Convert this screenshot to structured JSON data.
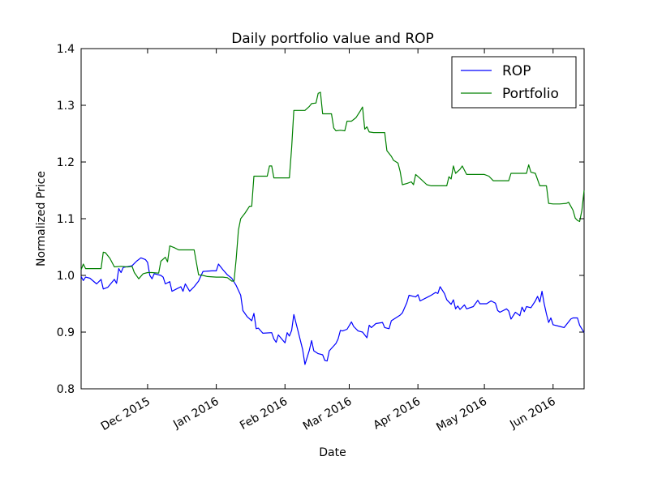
{
  "chart_data": {
    "type": "line",
    "title": "Daily portfolio value and ROP",
    "xlabel": "Date",
    "ylabel": "Normalized Price",
    "xlim": [
      "2015-11-01",
      "2016-06-15"
    ],
    "ylim": [
      0.8,
      1.4
    ],
    "y_ticks": [
      "0.8",
      "0.9",
      "1.0",
      "1.1",
      "1.2",
      "1.3",
      "1.4"
    ],
    "x_ticks": [
      {
        "date": "2015-12-01",
        "label": "Dec 2015"
      },
      {
        "date": "2016-01-01",
        "label": "Jan 2016"
      },
      {
        "date": "2016-02-01",
        "label": "Feb 2016"
      },
      {
        "date": "2016-03-01",
        "label": "Mar 2016"
      },
      {
        "date": "2016-04-01",
        "label": "Apr 2016"
      },
      {
        "date": "2016-05-01",
        "label": "May 2016"
      },
      {
        "date": "2016-06-01",
        "label": "Jun 2016"
      }
    ],
    "grid": false,
    "legend_position": "top-right",
    "series": [
      {
        "name": "ROP",
        "color": "#0000ff",
        "points": [
          [
            "2015-11-01",
            0.998
          ],
          [
            "2015-11-02",
            0.991
          ],
          [
            "2015-11-03",
            0.997
          ],
          [
            "2015-11-05",
            0.995
          ],
          [
            "2015-11-08",
            0.985
          ],
          [
            "2015-11-10",
            0.993
          ],
          [
            "2015-11-11",
            0.976
          ],
          [
            "2015-11-13",
            0.979
          ],
          [
            "2015-11-16",
            0.993
          ],
          [
            "2015-11-17",
            0.986
          ],
          [
            "2015-11-18",
            1.012
          ],
          [
            "2015-11-19",
            1.005
          ],
          [
            "2015-11-20",
            1.014
          ],
          [
            "2015-11-24",
            1.017
          ],
          [
            "2015-11-26",
            1.025
          ],
          [
            "2015-11-28",
            1.031
          ],
          [
            "2015-11-30",
            1.028
          ],
          [
            "2015-12-01",
            1.023
          ],
          [
            "2015-12-02",
            1.0
          ],
          [
            "2015-12-03",
            0.994
          ],
          [
            "2015-12-04",
            1.003
          ],
          [
            "2015-12-07",
            1.0
          ],
          [
            "2015-12-08",
            0.997
          ],
          [
            "2015-12-09",
            0.985
          ],
          [
            "2015-12-11",
            0.989
          ],
          [
            "2015-12-12",
            0.972
          ],
          [
            "2015-12-14",
            0.976
          ],
          [
            "2015-12-16",
            0.98
          ],
          [
            "2015-12-17",
            0.972
          ],
          [
            "2015-12-18",
            0.985
          ],
          [
            "2015-12-20",
            0.972
          ],
          [
            "2015-12-22",
            0.98
          ],
          [
            "2015-12-24",
            0.99
          ],
          [
            "2015-12-26",
            1.007
          ],
          [
            "2015-12-30",
            1.008
          ],
          [
            "2016-01-01",
            1.008
          ],
          [
            "2016-01-02",
            1.02
          ],
          [
            "2016-01-04",
            1.01
          ],
          [
            "2016-01-06",
            1.001
          ],
          [
            "2016-01-08",
            0.995
          ],
          [
            "2016-01-10",
            0.982
          ],
          [
            "2016-01-12",
            0.965
          ],
          [
            "2016-01-13",
            0.938
          ],
          [
            "2016-01-15",
            0.927
          ],
          [
            "2016-01-17",
            0.92
          ],
          [
            "2016-01-18",
            0.933
          ],
          [
            "2016-01-19",
            0.906
          ],
          [
            "2016-01-20",
            0.907
          ],
          [
            "2016-01-22",
            0.898
          ],
          [
            "2016-01-26",
            0.899
          ],
          [
            "2016-01-27",
            0.888
          ],
          [
            "2016-01-28",
            0.882
          ],
          [
            "2016-01-29",
            0.895
          ],
          [
            "2016-02-01",
            0.881
          ],
          [
            "2016-02-02",
            0.899
          ],
          [
            "2016-02-03",
            0.893
          ],
          [
            "2016-02-04",
            0.903
          ],
          [
            "2016-02-05",
            0.931
          ],
          [
            "2016-02-07",
            0.9
          ],
          [
            "2016-02-09",
            0.869
          ],
          [
            "2016-02-10",
            0.843
          ],
          [
            "2016-02-12",
            0.868
          ],
          [
            "2016-02-13",
            0.885
          ],
          [
            "2016-02-14",
            0.867
          ],
          [
            "2016-02-16",
            0.862
          ],
          [
            "2016-02-18",
            0.86
          ],
          [
            "2016-02-19",
            0.85
          ],
          [
            "2016-02-20",
            0.849
          ],
          [
            "2016-02-21",
            0.867
          ],
          [
            "2016-02-24",
            0.88
          ],
          [
            "2016-02-25",
            0.888
          ],
          [
            "2016-02-26",
            0.903
          ],
          [
            "2016-02-27",
            0.902
          ],
          [
            "2016-02-29",
            0.905
          ],
          [
            "2016-03-02",
            0.918
          ],
          [
            "2016-03-03",
            0.91
          ],
          [
            "2016-03-05",
            0.902
          ],
          [
            "2016-03-07",
            0.9
          ],
          [
            "2016-03-09",
            0.89
          ],
          [
            "2016-03-10",
            0.912
          ],
          [
            "2016-03-11",
            0.908
          ],
          [
            "2016-03-13",
            0.915
          ],
          [
            "2016-03-16",
            0.917
          ],
          [
            "2016-03-17",
            0.908
          ],
          [
            "2016-03-19",
            0.906
          ],
          [
            "2016-03-20",
            0.92
          ],
          [
            "2016-03-24",
            0.93
          ],
          [
            "2016-03-25",
            0.934
          ],
          [
            "2016-03-27",
            0.952
          ],
          [
            "2016-03-28",
            0.965
          ],
          [
            "2016-03-31",
            0.962
          ],
          [
            "2016-04-01",
            0.966
          ],
          [
            "2016-04-02",
            0.955
          ],
          [
            "2016-04-05",
            0.961
          ],
          [
            "2016-04-07",
            0.965
          ],
          [
            "2016-04-09",
            0.97
          ],
          [
            "2016-04-10",
            0.968
          ],
          [
            "2016-04-11",
            0.98
          ],
          [
            "2016-04-13",
            0.968
          ],
          [
            "2016-04-14",
            0.957
          ],
          [
            "2016-04-16",
            0.949
          ],
          [
            "2016-04-17",
            0.957
          ],
          [
            "2016-04-18",
            0.941
          ],
          [
            "2016-04-19",
            0.946
          ],
          [
            "2016-04-20",
            0.94
          ],
          [
            "2016-04-22",
            0.948
          ],
          [
            "2016-04-23",
            0.941
          ],
          [
            "2016-04-26",
            0.945
          ],
          [
            "2016-04-28",
            0.956
          ],
          [
            "2016-04-29",
            0.95
          ],
          [
            "2016-05-02",
            0.95
          ],
          [
            "2016-05-04",
            0.955
          ],
          [
            "2016-05-05",
            0.953
          ],
          [
            "2016-05-06",
            0.951
          ],
          [
            "2016-05-07",
            0.938
          ],
          [
            "2016-05-08",
            0.935
          ],
          [
            "2016-05-11",
            0.941
          ],
          [
            "2016-05-12",
            0.937
          ],
          [
            "2016-05-13",
            0.923
          ],
          [
            "2016-05-15",
            0.935
          ],
          [
            "2016-05-17",
            0.929
          ],
          [
            "2016-05-18",
            0.944
          ],
          [
            "2016-05-19",
            0.936
          ],
          [
            "2016-05-20",
            0.945
          ],
          [
            "2016-05-22",
            0.943
          ],
          [
            "2016-05-24",
            0.955
          ],
          [
            "2016-05-25",
            0.963
          ],
          [
            "2016-05-26",
            0.953
          ],
          [
            "2016-05-27",
            0.972
          ],
          [
            "2016-05-28",
            0.95
          ],
          [
            "2016-05-29",
            0.932
          ],
          [
            "2016-05-30",
            0.917
          ],
          [
            "2016-05-31",
            0.925
          ],
          [
            "2016-06-01",
            0.913
          ],
          [
            "2016-06-04",
            0.91
          ],
          [
            "2016-06-06",
            0.908
          ],
          [
            "2016-06-07",
            0.913
          ],
          [
            "2016-06-09",
            0.923
          ],
          [
            "2016-06-10",
            0.925
          ],
          [
            "2016-06-12",
            0.925
          ],
          [
            "2016-06-13",
            0.912
          ],
          [
            "2016-06-15",
            0.899
          ]
        ]
      },
      {
        "name": "Portfolio",
        "color": "#008000",
        "points": [
          [
            "2015-11-01",
            1.01
          ],
          [
            "2015-11-02",
            1.02
          ],
          [
            "2015-11-03",
            1.012
          ],
          [
            "2015-11-06",
            1.012
          ],
          [
            "2015-11-10",
            1.012
          ],
          [
            "2015-11-11",
            1.041
          ],
          [
            "2015-11-12",
            1.04
          ],
          [
            "2015-11-14",
            1.03
          ],
          [
            "2015-11-16",
            1.015
          ],
          [
            "2015-11-19",
            1.016
          ],
          [
            "2015-11-22",
            1.015
          ],
          [
            "2015-11-24",
            1.016
          ],
          [
            "2015-11-25",
            1.005
          ],
          [
            "2015-11-27",
            0.994
          ],
          [
            "2015-11-29",
            1.003
          ],
          [
            "2015-12-01",
            1.005
          ],
          [
            "2015-12-03",
            1.005
          ],
          [
            "2015-12-06",
            1.004
          ],
          [
            "2015-12-07",
            1.025
          ],
          [
            "2015-12-09",
            1.032
          ],
          [
            "2015-12-10",
            1.024
          ],
          [
            "2015-12-11",
            1.052
          ],
          [
            "2015-12-13",
            1.049
          ],
          [
            "2015-12-15",
            1.045
          ],
          [
            "2015-12-18",
            1.045
          ],
          [
            "2015-12-20",
            1.045
          ],
          [
            "2015-12-22",
            1.045
          ],
          [
            "2015-12-24",
            1.001
          ],
          [
            "2015-12-26",
            1.0
          ],
          [
            "2015-12-28",
            0.998
          ],
          [
            "2016-01-01",
            0.997
          ],
          [
            "2016-01-04",
            0.997
          ],
          [
            "2016-01-06",
            0.996
          ],
          [
            "2016-01-08",
            0.99
          ],
          [
            "2016-01-09",
            0.99
          ],
          [
            "2016-01-10",
            1.03
          ],
          [
            "2016-01-11",
            1.08
          ],
          [
            "2016-01-12",
            1.1
          ],
          [
            "2016-01-14",
            1.11
          ],
          [
            "2016-01-16",
            1.122
          ],
          [
            "2016-01-17",
            1.122
          ],
          [
            "2016-01-18",
            1.175
          ],
          [
            "2016-01-20",
            1.175
          ],
          [
            "2016-01-22",
            1.175
          ],
          [
            "2016-01-24",
            1.175
          ],
          [
            "2016-01-25",
            1.193
          ],
          [
            "2016-01-26",
            1.193
          ],
          [
            "2016-01-27",
            1.172
          ],
          [
            "2016-01-29",
            1.172
          ],
          [
            "2016-02-01",
            1.172
          ],
          [
            "2016-02-03",
            1.172
          ],
          [
            "2016-02-04",
            1.225
          ],
          [
            "2016-02-05",
            1.291
          ],
          [
            "2016-02-07",
            1.291
          ],
          [
            "2016-02-10",
            1.291
          ],
          [
            "2016-02-12",
            1.298
          ],
          [
            "2016-02-13",
            1.303
          ],
          [
            "2016-02-15",
            1.304
          ],
          [
            "2016-02-16",
            1.321
          ],
          [
            "2016-02-17",
            1.323
          ],
          [
            "2016-02-18",
            1.285
          ],
          [
            "2016-02-20",
            1.285
          ],
          [
            "2016-02-22",
            1.285
          ],
          [
            "2016-02-23",
            1.26
          ],
          [
            "2016-02-24",
            1.255
          ],
          [
            "2016-02-26",
            1.256
          ],
          [
            "2016-02-28",
            1.255
          ],
          [
            "2016-02-29",
            1.272
          ],
          [
            "2016-03-02",
            1.272
          ],
          [
            "2016-03-04",
            1.278
          ],
          [
            "2016-03-06",
            1.29
          ],
          [
            "2016-03-07",
            1.297
          ],
          [
            "2016-03-08",
            1.258
          ],
          [
            "2016-03-09",
            1.262
          ],
          [
            "2016-03-10",
            1.253
          ],
          [
            "2016-03-12",
            1.252
          ],
          [
            "2016-03-15",
            1.252
          ],
          [
            "2016-03-17",
            1.252
          ],
          [
            "2016-03-18",
            1.22
          ],
          [
            "2016-03-20",
            1.21
          ],
          [
            "2016-03-21",
            1.203
          ],
          [
            "2016-03-23",
            1.198
          ],
          [
            "2016-03-24",
            1.183
          ],
          [
            "2016-03-25",
            1.16
          ],
          [
            "2016-03-27",
            1.162
          ],
          [
            "2016-03-29",
            1.165
          ],
          [
            "2016-03-30",
            1.16
          ],
          [
            "2016-03-31",
            1.178
          ],
          [
            "2016-04-02",
            1.171
          ],
          [
            "2016-04-05",
            1.16
          ],
          [
            "2016-04-07",
            1.158
          ],
          [
            "2016-04-10",
            1.158
          ],
          [
            "2016-04-12",
            1.158
          ],
          [
            "2016-04-14",
            1.158
          ],
          [
            "2016-04-15",
            1.174
          ],
          [
            "2016-04-16",
            1.17
          ],
          [
            "2016-04-17",
            1.193
          ],
          [
            "2016-04-18",
            1.18
          ],
          [
            "2016-04-20",
            1.187
          ],
          [
            "2016-04-21",
            1.193
          ],
          [
            "2016-04-23",
            1.178
          ],
          [
            "2016-04-26",
            1.178
          ],
          [
            "2016-04-28",
            1.178
          ],
          [
            "2016-05-01",
            1.178
          ],
          [
            "2016-05-03",
            1.175
          ],
          [
            "2016-05-05",
            1.167
          ],
          [
            "2016-05-08",
            1.167
          ],
          [
            "2016-05-10",
            1.167
          ],
          [
            "2016-05-12",
            1.167
          ],
          [
            "2016-05-13",
            1.18
          ],
          [
            "2016-05-15",
            1.18
          ],
          [
            "2016-05-18",
            1.18
          ],
          [
            "2016-05-20",
            1.18
          ],
          [
            "2016-05-21",
            1.195
          ],
          [
            "2016-05-22",
            1.182
          ],
          [
            "2016-05-24",
            1.18
          ],
          [
            "2016-05-26",
            1.158
          ],
          [
            "2016-05-28",
            1.158
          ],
          [
            "2016-05-29",
            1.158
          ],
          [
            "2016-05-30",
            1.127
          ],
          [
            "2016-06-01",
            1.126
          ],
          [
            "2016-06-04",
            1.126
          ],
          [
            "2016-06-07",
            1.127
          ],
          [
            "2016-06-08",
            1.129
          ],
          [
            "2016-06-09",
            1.122
          ],
          [
            "2016-06-10",
            1.115
          ],
          [
            "2016-06-11",
            1.101
          ],
          [
            "2016-06-12",
            1.097
          ],
          [
            "2016-06-13",
            1.095
          ],
          [
            "2016-06-14",
            1.115
          ],
          [
            "2016-06-15",
            1.15
          ]
        ]
      }
    ]
  }
}
